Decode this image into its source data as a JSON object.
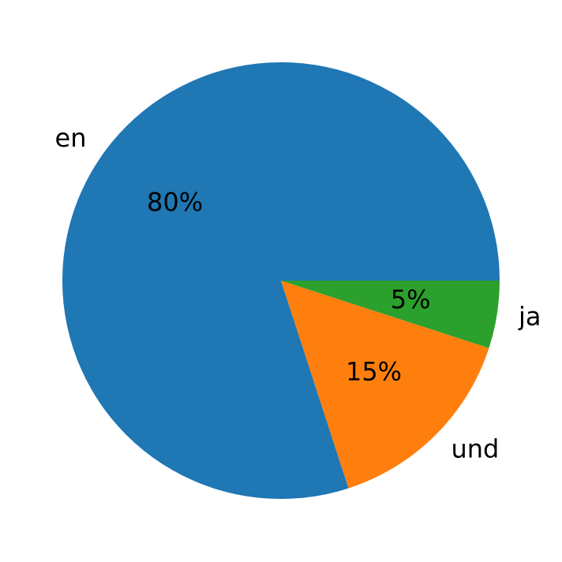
{
  "chart_data": {
    "type": "pie",
    "categories": [
      "en",
      "und",
      "ja"
    ],
    "values": [
      80,
      15,
      5
    ],
    "value_labels": [
      "80%",
      "15%",
      "5%"
    ],
    "colors": [
      "#1f77b4",
      "#ff7f0e",
      "#2ca02c"
    ]
  }
}
